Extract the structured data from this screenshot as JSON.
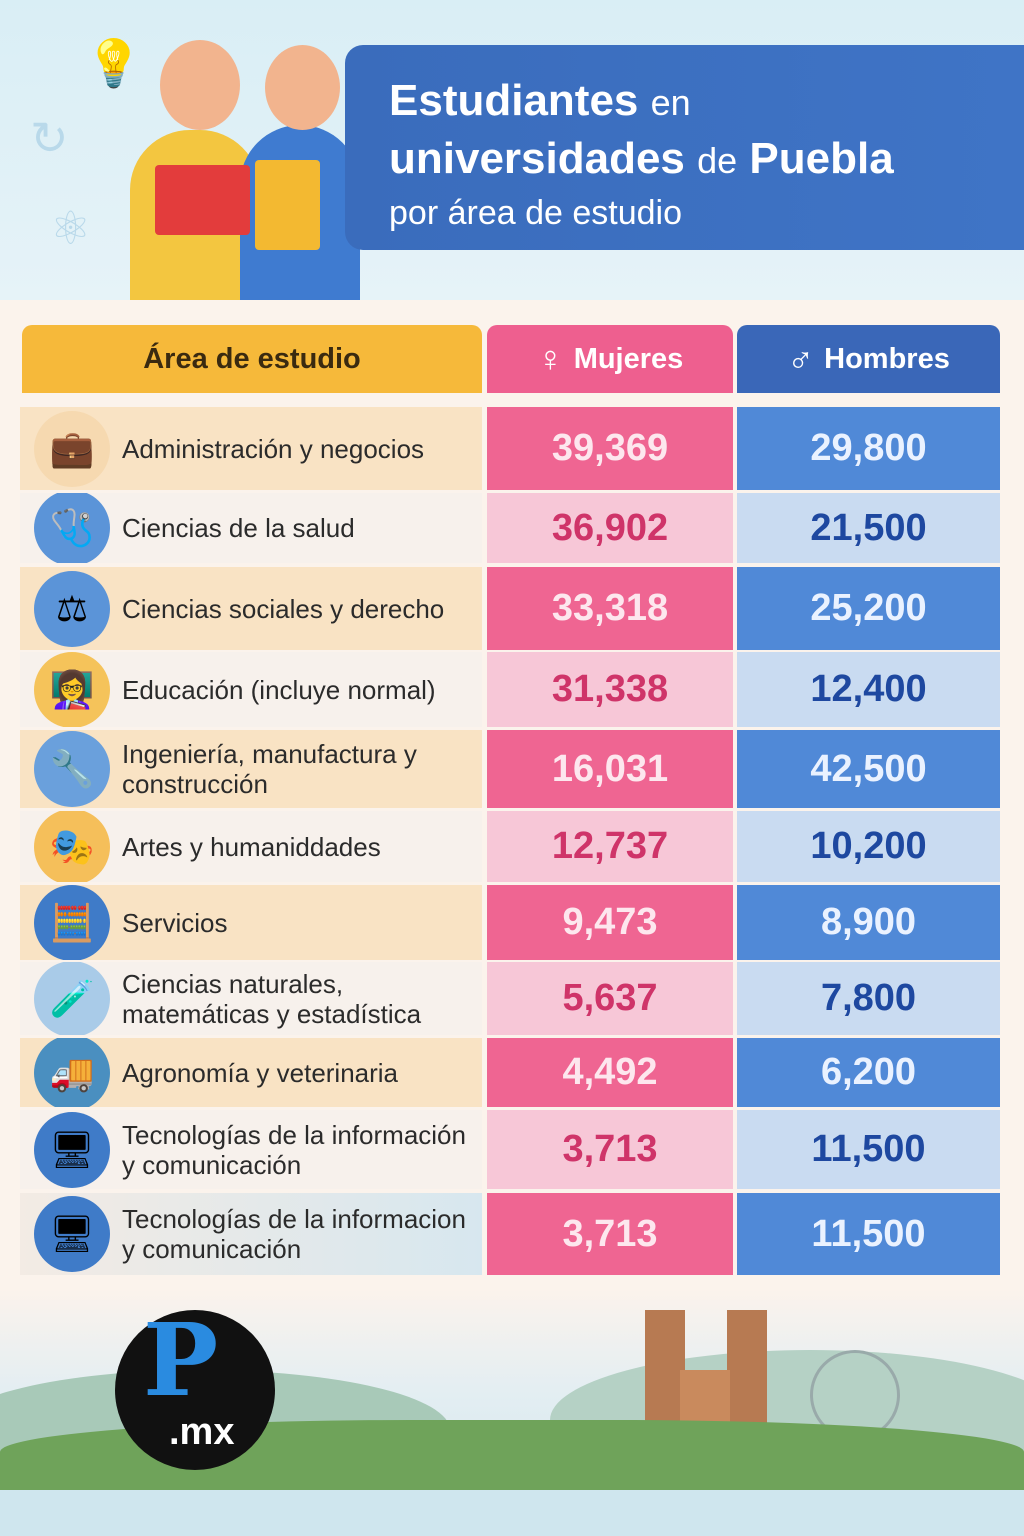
{
  "title": {
    "line1_bold": "Estudiantes",
    "line1_small": "en",
    "line2_bold1": "universidades",
    "line2_small": "de",
    "line2_bold2": "Puebla",
    "line3": "por área de estudio"
  },
  "columns": {
    "area": "Área de estudio",
    "women": "Mujeres",
    "men": "Hombres",
    "women_icon": "female-symbol",
    "men_icon": "male-symbol"
  },
  "colors": {
    "women_dark": "#ef6592",
    "women_light": "#f7c7d7",
    "men_dark": "#5089d7",
    "men_light": "#c9dbf1",
    "header_area": "#f6b93a",
    "title_bg": "#3a6cbc"
  },
  "rows": [
    {
      "area": "Administración y negocios",
      "women": "39,369",
      "men": "29,800",
      "icon": "briefcase"
    },
    {
      "area": "Ciencias de la salud",
      "women": "36,902",
      "men": "21,500",
      "icon": "stethoscope"
    },
    {
      "area": "Ciencias sociales y derecho",
      "women": "33,318",
      "men": "25,200",
      "icon": "scales"
    },
    {
      "area": "Educación (incluye normal)",
      "women": "31,338",
      "men": "12,400",
      "icon": "teacher"
    },
    {
      "area": "Ingeniería, manufactura y construcción",
      "women": "16,031",
      "men": "42,500",
      "icon": "tools"
    },
    {
      "area": "Artes y humaniddades",
      "women": "12,737",
      "men": "10,200",
      "icon": "theater-masks"
    },
    {
      "area": "Servicios",
      "women": "9,473",
      "men": "8,900",
      "icon": "calculator"
    },
    {
      "area": "Ciencias naturales, matemáticas y estadística",
      "women": "5,637",
      "men": "7,800",
      "icon": "dna-flask"
    },
    {
      "area": "Agronomía y veterinaria",
      "women": "4,492",
      "men": "6,200",
      "icon": "truck"
    },
    {
      "area": "Tecnologías de la información y comunicación",
      "women": "3,713",
      "men": "11,500",
      "icon": "monitor"
    },
    {
      "area": "Tecnologías de la informacion y comunicación",
      "women": "3,713",
      "men": "11,500",
      "icon": "monitor"
    }
  ],
  "logo": {
    "letter": "P",
    "suffix": ".mx"
  },
  "chart_data": {
    "type": "table",
    "title": "Estudiantes en universidades de Puebla por área de estudio",
    "columns": [
      "Área de estudio",
      "Mujeres",
      "Hombres"
    ],
    "categories": [
      "Administración y negocios",
      "Ciencias de la salud",
      "Ciencias sociales y derecho",
      "Educación (incluye normal)",
      "Ingeniería, manufactura y construcción",
      "Artes y humaniddades",
      "Servicios",
      "Ciencias naturales, matemáticas y estadística",
      "Agronomía y veterinaria",
      "Tecnologías de la información y comunicación",
      "Tecnologías de la informacion y comunicación"
    ],
    "series": [
      {
        "name": "Mujeres",
        "values": [
          39369,
          36902,
          33318,
          31338,
          16031,
          12737,
          9473,
          5637,
          4492,
          3713,
          3713
        ]
      },
      {
        "name": "Hombres",
        "values": [
          29800,
          21500,
          25200,
          12400,
          42500,
          10200,
          8900,
          7800,
          6200,
          11500,
          11500
        ]
      }
    ]
  }
}
